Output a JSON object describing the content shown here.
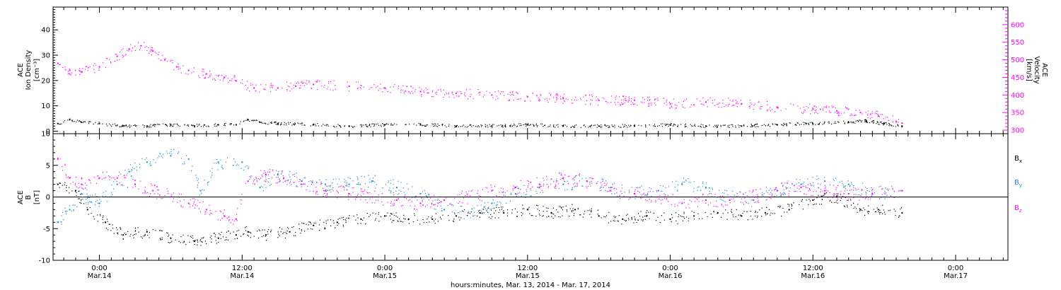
{
  "x_axis": {
    "title": "hours:minutes, Mar. 13, 2014 - Mar. 17, 2014",
    "ticks": [
      {
        "hour": 24,
        "time": "0:00",
        "date": "Mar.14"
      },
      {
        "hour": 36,
        "time": "12:00",
        "date": "Mar.14"
      },
      {
        "hour": 48,
        "time": "0:00",
        "date": "Mar.15"
      },
      {
        "hour": 60,
        "time": "12:00",
        "date": "Mar.15"
      },
      {
        "hour": 72,
        "time": "0:00",
        "date": "Mar.16"
      },
      {
        "hour": 84,
        "time": "12:00",
        "date": "Mar.16"
      },
      {
        "hour": 96,
        "time": "0:00",
        "date": "Mar.17"
      }
    ]
  },
  "chart_data": [
    {
      "type": "scatter",
      "panel": "plasma",
      "xlim_hours": [
        20.1,
        100.4
      ],
      "left_axis": {
        "label_lines": [
          "ACE",
          "Ion Density",
          "[cm⁻³]"
        ],
        "ylim": [
          -1,
          49
        ],
        "ticks": [
          0,
          10,
          20,
          30,
          40
        ]
      },
      "right_axis": {
        "label_lines": [
          "ACE",
          "Velocity",
          "[km/s]"
        ],
        "ylim": [
          290,
          650
        ],
        "ticks": [
          300,
          350,
          400,
          450,
          500,
          550,
          600
        ]
      },
      "series": [
        {
          "axis": "left",
          "color": "#000000",
          "x_hours": [
            20.5,
            21.5,
            22.5,
            24,
            26,
            28,
            30,
            32,
            34,
            35.5,
            36.5,
            37.5,
            39,
            42,
            45,
            48,
            51,
            54,
            57,
            60,
            63,
            66,
            69,
            72,
            75,
            78,
            81,
            84,
            87,
            88.5,
            90,
            91.5
          ],
          "values": [
            3.0,
            4.5,
            3.5,
            3.0,
            2.0,
            2.0,
            2.5,
            2.0,
            2.5,
            2.5,
            4.5,
            3.5,
            3.0,
            2.5,
            2.0,
            2.5,
            2.5,
            2.0,
            2.0,
            2.5,
            2.0,
            2.0,
            2.0,
            2.5,
            2.0,
            2.0,
            2.5,
            3.0,
            3.5,
            4.0,
            3.0,
            2.0
          ]
        },
        {
          "axis": "right",
          "color": "#ff00ff",
          "x_hours": [
            20.5,
            21.5,
            22.5,
            24,
            25.5,
            26.5,
            27.5,
            28.5,
            29.5,
            30.5,
            31.5,
            33,
            34.5,
            35.5,
            37,
            39,
            40.5,
            42,
            45,
            48,
            51,
            54,
            57,
            60,
            63,
            66,
            69,
            72,
            75,
            78,
            81,
            84,
            86,
            88,
            89.5,
            91,
            91.5
          ],
          "values": [
            490,
            470,
            465,
            480,
            510,
            530,
            540,
            525,
            500,
            480,
            470,
            460,
            450,
            440,
            420,
            420,
            425,
            430,
            425,
            420,
            410,
            405,
            400,
            395,
            390,
            385,
            385,
            375,
            380,
            375,
            365,
            360,
            355,
            350,
            340,
            325,
            320
          ]
        }
      ]
    },
    {
      "type": "scatter",
      "panel": "magnetic field",
      "xlim_hours": [
        20.1,
        100.4
      ],
      "left_axis": {
        "label_lines": [
          "ACE",
          "B",
          "[nT]"
        ],
        "ylim": [
          -10,
          10
        ],
        "ticks": [
          -10,
          -5,
          0,
          5,
          10
        ]
      },
      "legend": [
        "Bx",
        "By",
        "Bz"
      ],
      "series": [
        {
          "name": "Bx",
          "color": "#000000",
          "x_hours": [
            20.5,
            22,
            23,
            24.5,
            26,
            28,
            30,
            32,
            34,
            35.5,
            36.5,
            38,
            40,
            42,
            44,
            46,
            48,
            50,
            52,
            54,
            56,
            58,
            60,
            62,
            64,
            66,
            68,
            70,
            72,
            74,
            76,
            78,
            80,
            82,
            84,
            86,
            88,
            89.5,
            91.5
          ],
          "values": [
            2.0,
            1.0,
            -2.0,
            -4.0,
            -6.0,
            -5.5,
            -6.5,
            -7.0,
            -6.5,
            -6.0,
            -5.5,
            -6.0,
            -5.5,
            -4.5,
            -4.0,
            -3.5,
            -3.0,
            -3.5,
            -3.5,
            -3.0,
            -2.5,
            -2.5,
            -2.0,
            -2.5,
            -2.0,
            -3.0,
            -3.5,
            -3.0,
            -3.5,
            -3.0,
            -2.5,
            -3.0,
            -2.5,
            -2.0,
            -0.5,
            0.0,
            -2.0,
            -2.0,
            -2.5
          ]
        },
        {
          "name": "By",
          "color": "#1e88e5",
          "x_hours": [
            20.5,
            21.5,
            22.5,
            24,
            25.5,
            26.5,
            28,
            30,
            31.5,
            32.5,
            34,
            36,
            37.5,
            39,
            41,
            43,
            45,
            47,
            49,
            51,
            53,
            55,
            57,
            59,
            61,
            63,
            65,
            67,
            69,
            71,
            73,
            75,
            77,
            79,
            81,
            83,
            85,
            87,
            89,
            91.5
          ],
          "values": [
            -4.0,
            -2.0,
            0.5,
            -1.0,
            2.0,
            4.0,
            5.5,
            6.5,
            6.0,
            1.0,
            5.5,
            5.5,
            1.5,
            3.5,
            2.5,
            2.0,
            2.0,
            2.5,
            1.5,
            0.5,
            -2.0,
            -2.5,
            -1.0,
            0.5,
            1.5,
            2.0,
            2.5,
            1.5,
            0.5,
            1.0,
            2.0,
            1.5,
            0.0,
            -0.5,
            1.0,
            2.0,
            2.5,
            2.0,
            0.5,
            1.0
          ]
        },
        {
          "name": "Bz",
          "color": "#ff00ff",
          "x_hours": [
            20.5,
            21.5,
            22.5,
            24,
            25.5,
            27,
            28.5,
            30,
            31.5,
            33,
            34.5,
            35.5,
            36.5,
            38,
            39.5,
            41,
            43,
            45,
            47,
            49,
            51,
            53,
            55,
            57,
            59,
            61,
            63,
            65,
            67,
            69,
            71,
            73,
            75,
            77,
            79,
            81,
            83,
            85,
            87,
            89,
            91.5
          ],
          "values": [
            6.0,
            3.0,
            2.0,
            3.0,
            3.0,
            2.0,
            1.0,
            0.0,
            -1.0,
            -2.0,
            -3.0,
            -3.5,
            2.5,
            3.5,
            3.0,
            2.0,
            1.0,
            0.5,
            0.0,
            -0.5,
            -1.0,
            -0.5,
            0.0,
            1.0,
            1.5,
            2.0,
            3.0,
            2.5,
            1.0,
            0.5,
            0.0,
            -1.0,
            -0.5,
            -0.5,
            0.0,
            1.0,
            1.5,
            1.0,
            0.5,
            0.5,
            1.0
          ]
        }
      ]
    }
  ]
}
